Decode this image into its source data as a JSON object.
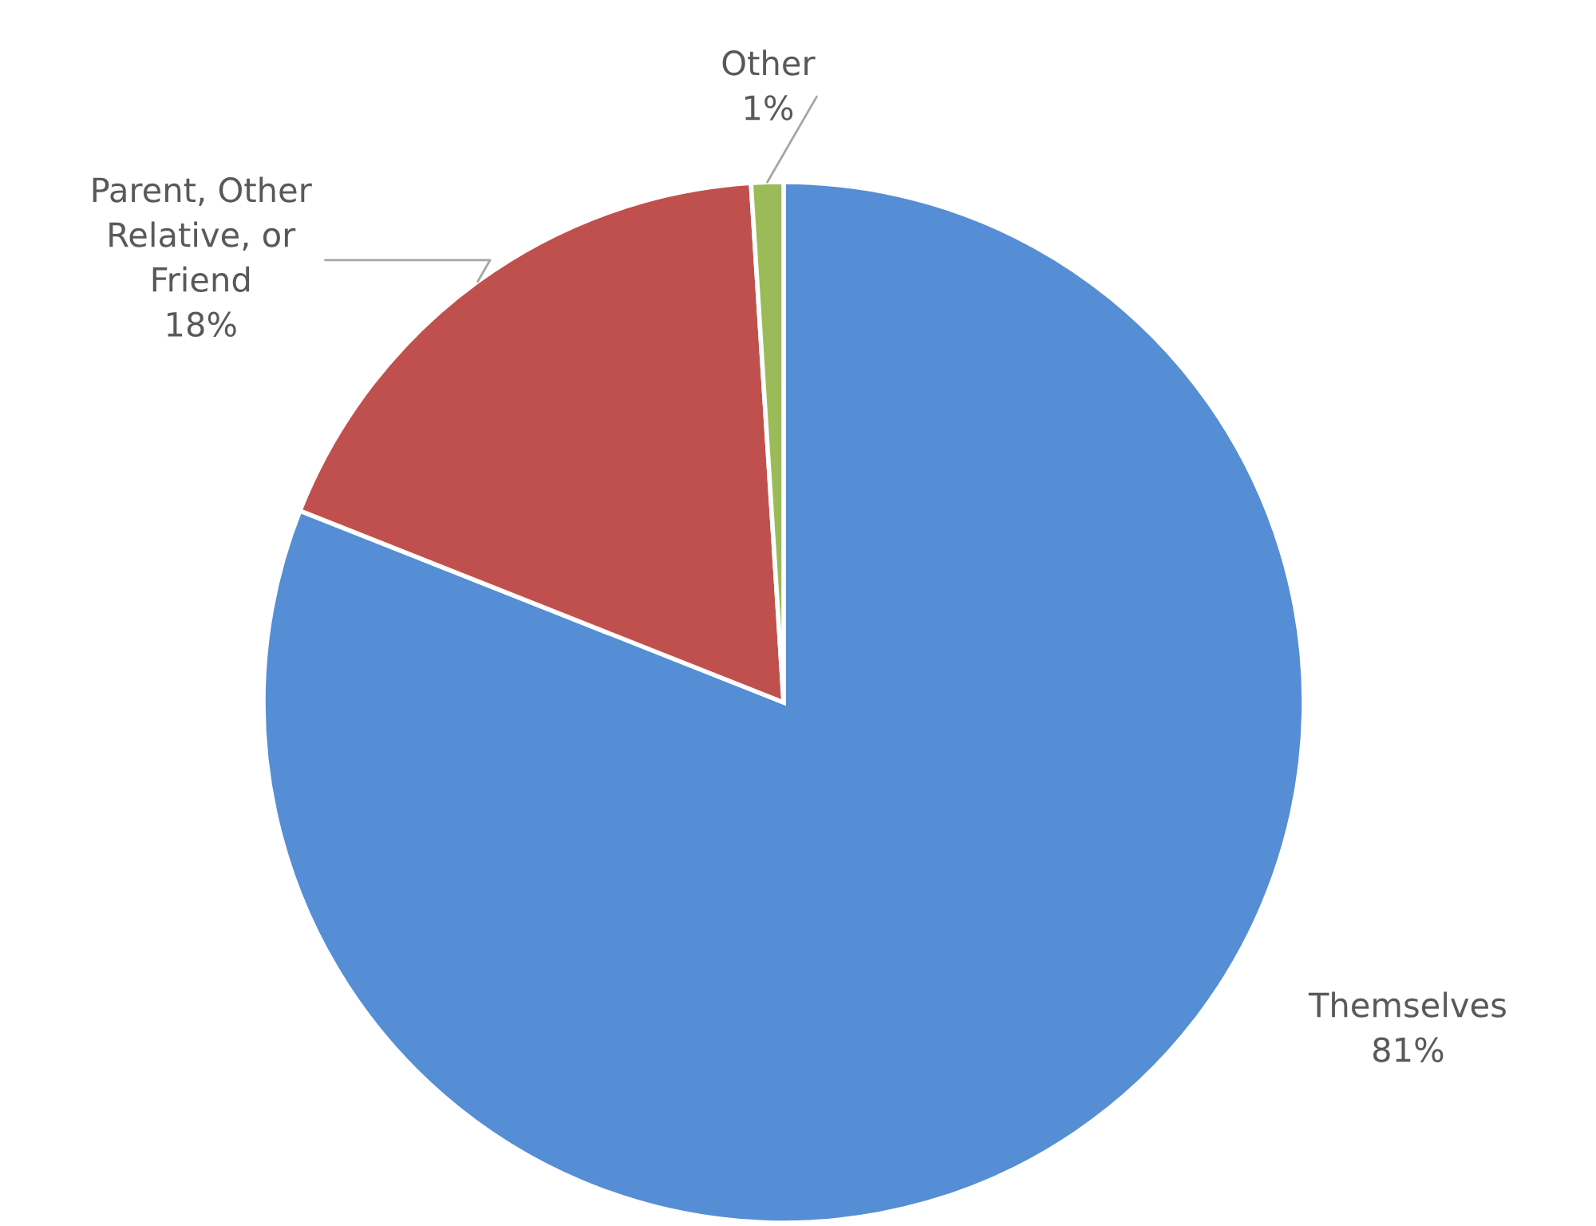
{
  "chart_data": {
    "type": "pie",
    "categories": [
      "Themselves",
      "Parent, Other\nRelative, or\nFriend",
      "Other"
    ],
    "values": [
      81,
      18,
      1
    ],
    "colors": [
      "#558ed5",
      "#c0504d",
      "#9bbb59"
    ],
    "value_labels": [
      "81%",
      "18%",
      "1%"
    ]
  }
}
